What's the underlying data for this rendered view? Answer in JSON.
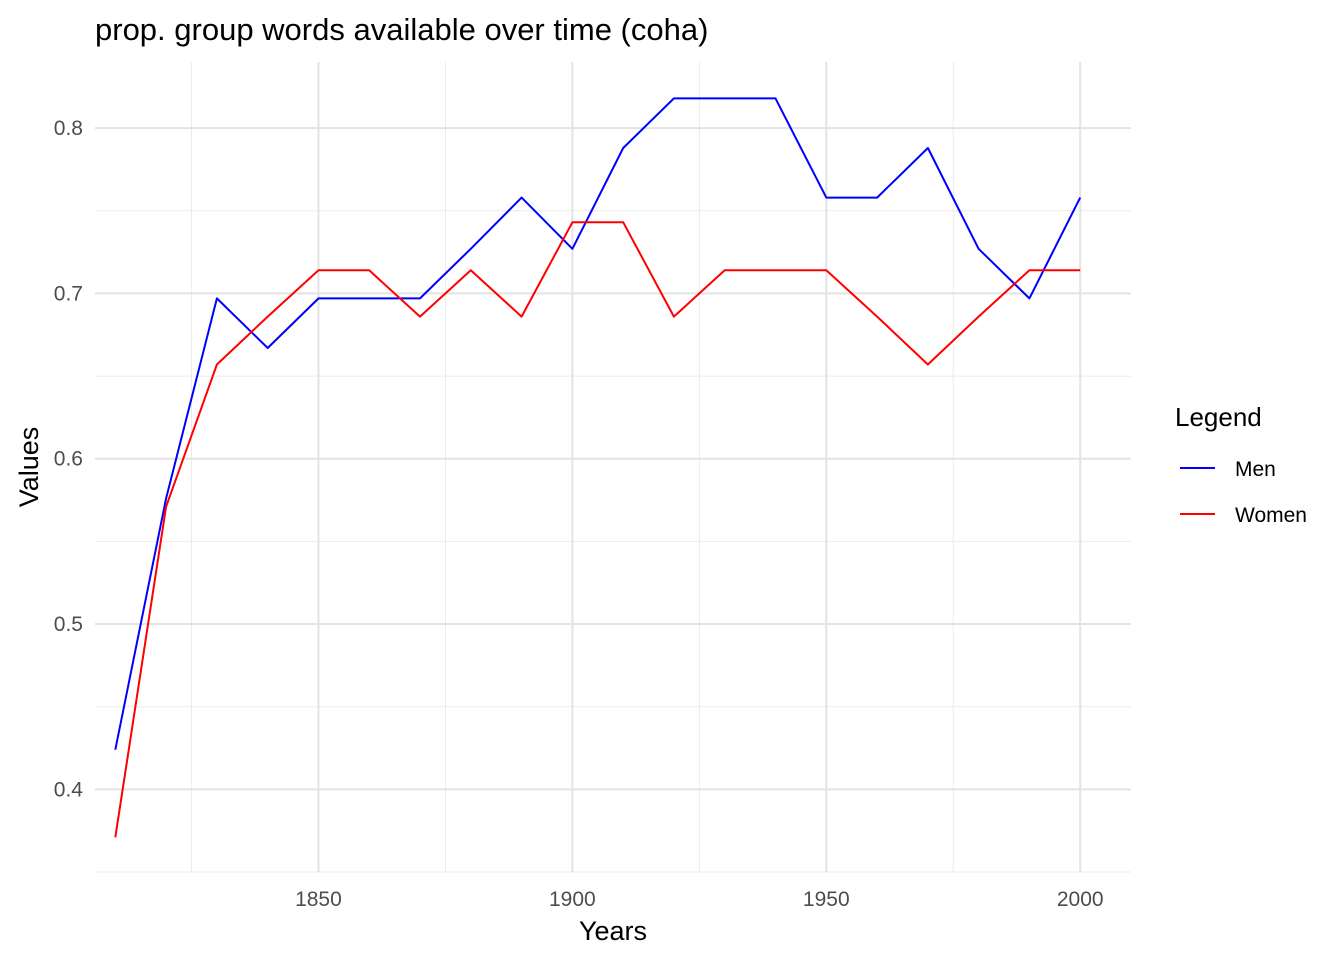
{
  "chart_data": {
    "type": "line",
    "title": "prop. group words available over time (coha)",
    "xlabel": "Years",
    "ylabel": "Values",
    "xlim": [
      1806,
      2010
    ],
    "ylim": [
      0.35,
      0.84
    ],
    "x_ticks": [
      1850,
      1900,
      1950,
      2000
    ],
    "x_tick_labels": [
      "1850",
      "1900",
      "1950",
      "2000"
    ],
    "y_ticks": [
      0.4,
      0.5,
      0.6,
      0.7,
      0.8
    ],
    "y_tick_labels": [
      "0.4",
      "0.5",
      "0.6",
      "0.7",
      "0.8"
    ],
    "grid": true,
    "legend": {
      "title": "Legend",
      "position": "right"
    },
    "x": [
      1810,
      1820,
      1830,
      1840,
      1850,
      1860,
      1870,
      1880,
      1890,
      1900,
      1910,
      1920,
      1930,
      1940,
      1950,
      1960,
      1970,
      1980,
      1990,
      2000
    ],
    "series": [
      {
        "name": "Men",
        "color": "#0000ff",
        "values": [
          0.424,
          0.576,
          0.697,
          0.667,
          0.697,
          0.697,
          0.697,
          0.727,
          0.758,
          0.727,
          0.788,
          0.818,
          0.818,
          0.818,
          0.758,
          0.758,
          0.788,
          0.727,
          0.697,
          0.758
        ]
      },
      {
        "name": "Women",
        "color": "#ff0000",
        "values": [
          0.371,
          0.571,
          0.657,
          0.686,
          0.714,
          0.714,
          0.686,
          0.714,
          0.686,
          0.743,
          0.743,
          0.686,
          0.714,
          0.714,
          0.714,
          0.686,
          0.657,
          0.686,
          0.714,
          0.714
        ]
      }
    ]
  }
}
